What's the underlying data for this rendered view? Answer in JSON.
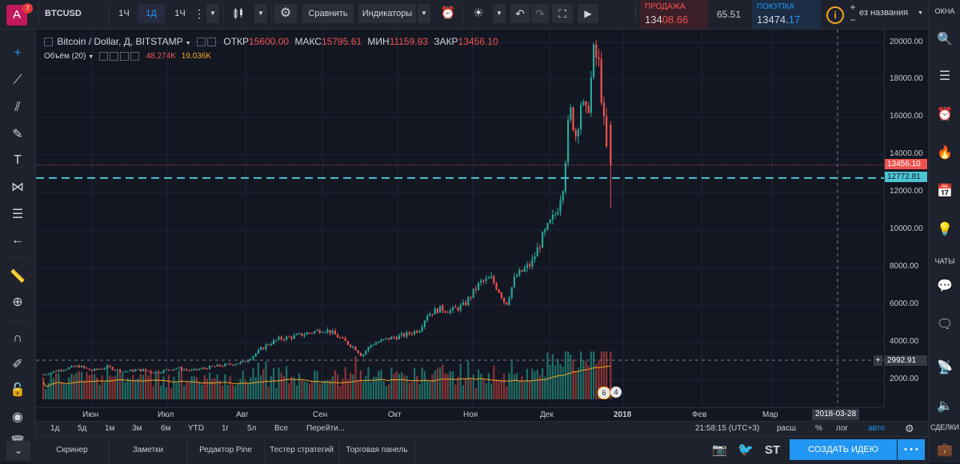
{
  "topbar": {
    "avatar_letter": "A",
    "avatar_badge": "7",
    "symbol": "BTCUSD",
    "intervals": [
      "1Ч",
      "1Д",
      "1Ч"
    ],
    "active_interval": "1Д",
    "compare_label": "Сравнить",
    "indicators_label": "Индикаторы",
    "sell_label": "ПРОДАЖА",
    "sell_price_main": "134",
    "sell_price_tail": "08.66",
    "spread": "65.51",
    "buy_label": "ПОКУПКА",
    "buy_price_main": "13474.",
    "buy_price_tail": "17",
    "layout_name": "ез названия",
    "plus": "+",
    "minus": "−"
  },
  "legend": {
    "title": "Bitcoin / Dollar, Д, BITSTAMP",
    "open_label": "ОТКР",
    "open": "15600.00",
    "high_label": "МАКС",
    "high": "15795.61",
    "low_label": "МИН",
    "low": "11159.93",
    "close_label": "ЗАКР",
    "close": "13456.10",
    "volume_label": "Объём (20)",
    "volume_value": "48.274K",
    "volume_ma": "19.036K"
  },
  "price_axis": {
    "ticks": [
      "20000.00",
      "18000.00",
      "16000.00",
      "14000.00",
      "12000.00",
      "10000.00",
      "8000.00",
      "6000.00",
      "4000.00",
      "2000.00"
    ],
    "last_price": "13456.10",
    "line_price": "12772.81",
    "cursor_price": "2992.91"
  },
  "time_axis": {
    "labels": [
      "Июн",
      "Июл",
      "Авг",
      "Сен",
      "Окт",
      "Ноя",
      "Дек",
      "2018",
      "Фев",
      "Мар"
    ],
    "cursor_date": "2018-03-28"
  },
  "range_bar": {
    "ranges": [
      "1д",
      "5д",
      "1м",
      "3м",
      "6м",
      "YTD",
      "1г",
      "5л",
      "Все"
    ],
    "goto": "Перейти...",
    "time": "21:58:15 (UTC+3)",
    "session": "расш",
    "percent": "%",
    "log": "лог",
    "auto": "авто"
  },
  "bottom_bar": {
    "tabs": [
      "Скринер",
      "Заметки",
      "Редактор Pine",
      "Тестер стратегий",
      "Торговая панель"
    ],
    "st_label": "ST",
    "publish_label": "СОЗДАТЬ ИДЕЮ",
    "more": "• • •"
  },
  "right_bar": {
    "windows_label": "ОКНА",
    "chats_label": "ЧАТЫ",
    "deals_label": "СДЕЛКИ"
  },
  "events": {
    "count_a": "6",
    "count_b": "4"
  },
  "colors": {
    "up": "#26a69a",
    "down": "#ef5350",
    "dashed_line": "#4dc6d3",
    "volume_ma": "#f5a623",
    "accent": "#2196f3"
  },
  "chart_data": {
    "type": "candlestick",
    "symbol": "BTCUSD",
    "interval": "1D",
    "exchange": "BITSTAMP",
    "ylim": [
      0,
      21000
    ],
    "last_candle": {
      "open": 15600.0,
      "high": 15795.61,
      "low": 11159.93,
      "close": 13456.1
    },
    "horizontal_line": 12772.81,
    "monthly_close_approx": [
      {
        "month": "Июн",
        "close": 2500
      },
      {
        "month": "Июл",
        "close": 2850
      },
      {
        "month": "Авг",
        "close": 4700
      },
      {
        "month": "Сен",
        "close": 4300
      },
      {
        "month": "Окт",
        "close": 6400
      },
      {
        "month": "Ноя",
        "close": 9900
      },
      {
        "month": "Дек",
        "close": 13456
      }
    ],
    "peak": 19600,
    "volume_last": "48.274K",
    "volume_ma20": "19.036K"
  }
}
